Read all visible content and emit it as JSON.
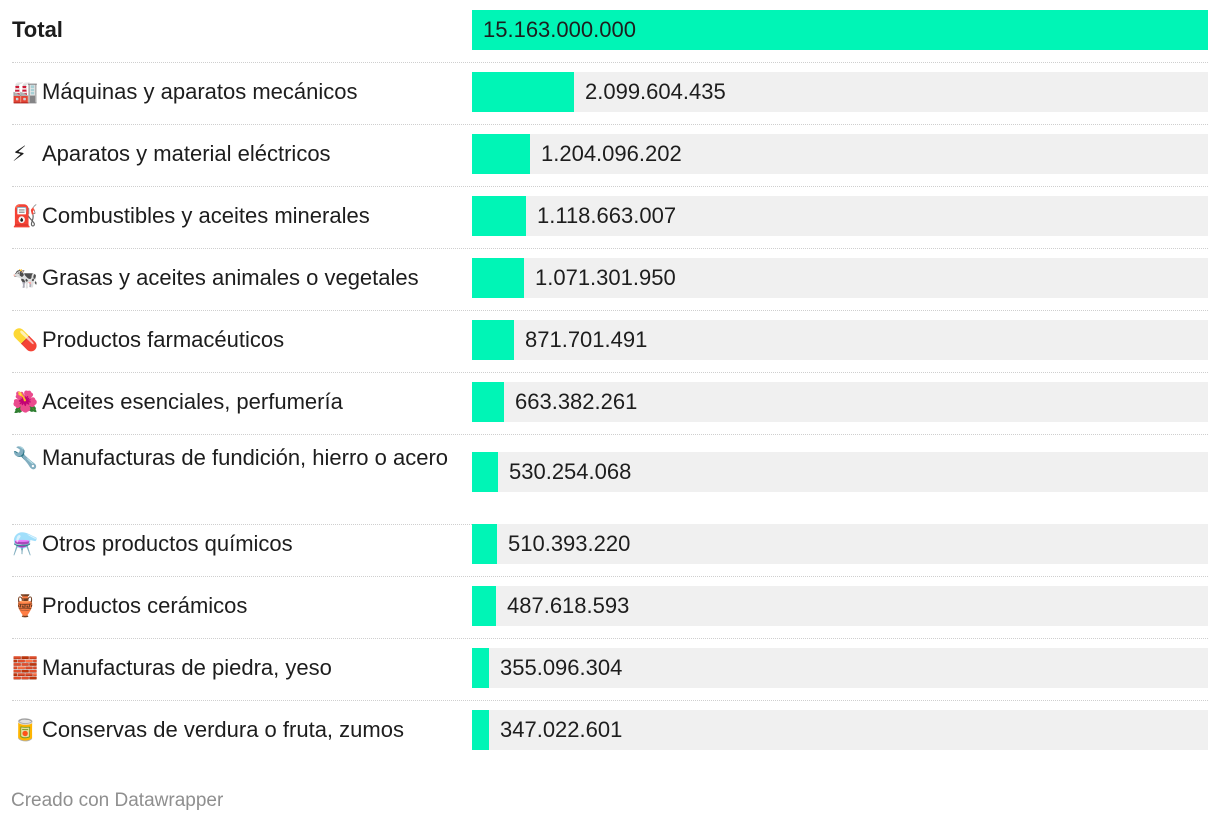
{
  "chart_data": {
    "type": "bar",
    "orientation": "horizontal",
    "total": {
      "label": "Total",
      "value": 15163000000,
      "value_label": "15.163.000.000"
    },
    "rows": [
      {
        "icon": "factory-icon",
        "emoji": "🏭",
        "label": "Máquinas y aparatos mecánicos",
        "value": 2099604435,
        "value_label": "2.099.604.435"
      },
      {
        "icon": "lightning-icon",
        "emoji": "⚡",
        "label": "Aparatos y material eléctricos",
        "value": 1204096202,
        "value_label": "1.204.096.202"
      },
      {
        "icon": "fuel-pump-icon",
        "emoji": "⛽",
        "label": "Combustibles y aceites minerales",
        "value": 1118663007,
        "value_label": "1.118.663.007"
      },
      {
        "icon": "cow-icon",
        "emoji": "🐄",
        "label": "Grasas y aceites animales o vegetales",
        "value": 1071301950,
        "value_label": "1.071.301.950"
      },
      {
        "icon": "pill-icon",
        "emoji": "💊",
        "label": "Productos farmacéuticos",
        "value": 871701491,
        "value_label": "871.701.491"
      },
      {
        "icon": "hibiscus-icon",
        "emoji": "🌺",
        "label": "Aceites esenciales, perfumería",
        "value": 663382261,
        "value_label": "663.382.261"
      },
      {
        "icon": "wrench-icon",
        "emoji": "🔧",
        "label": "Manufacturas de fundición, hierro o acero",
        "value": 530254068,
        "value_label": "530.254.068"
      },
      {
        "icon": "flask-icon",
        "emoji": "⚗️",
        "label": "Otros productos químicos",
        "value": 510393220,
        "value_label": "510.393.220"
      },
      {
        "icon": "amphora-icon",
        "emoji": "🏺",
        "label": "Productos cerámicos",
        "value": 487618593,
        "value_label": "487.618.593"
      },
      {
        "icon": "bricks-icon",
        "emoji": "🧱",
        "label": "Manufacturas de piedra, yeso",
        "value": 355096304,
        "value_label": "355.096.304"
      },
      {
        "icon": "can-icon",
        "emoji": "🥫",
        "label": "Conservas de verdura o fruta, zumos",
        "value": 347022601,
        "value_label": "347.022.601"
      }
    ],
    "xlim": [
      0,
      15163000000
    ],
    "colors": {
      "bar": "#00f5b6",
      "track": "#f0f0f0"
    }
  },
  "footer": {
    "credit": "Creado con Datawrapper"
  }
}
